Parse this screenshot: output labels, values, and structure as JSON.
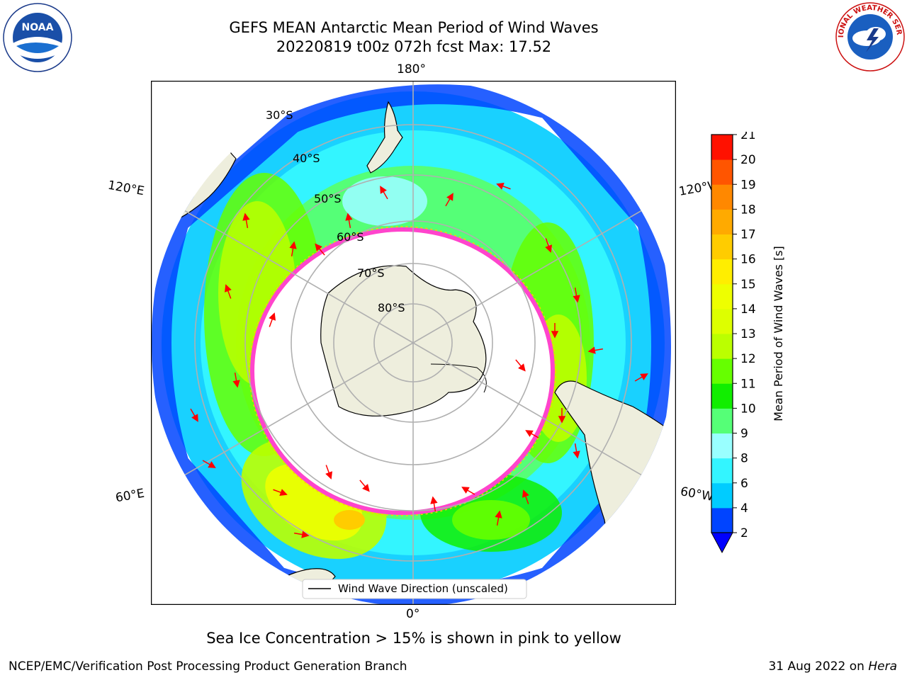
{
  "title": {
    "line1": "GEFS MEAN Antarctic Mean Period of Wind Waves",
    "line2": "20220819 t00z 072h fcst   Max: 17.52"
  },
  "map": {
    "projection": "south polar stereographic",
    "longitude_labels": {
      "top": "180°",
      "bottom": "0°",
      "upper_left": "120°E",
      "upper_right": "120°W",
      "lower_left": "60°E",
      "lower_right": "60°W"
    },
    "latitude_labels": [
      "30°S",
      "40°S",
      "50°S",
      "60°S",
      "70°S",
      "80°S"
    ],
    "legend": "Wind Wave Direction (unscaled)",
    "colors": {
      "land": "#eeeedd",
      "ice_edge": "#ff44cc",
      "arrow": "#ff0000",
      "grid": "#b0b0b0"
    }
  },
  "colorbar": {
    "label": "Mean Period of Wind Waves [s]",
    "ticks": [
      "2",
      "4",
      "6",
      "8",
      "9",
      "10",
      "11",
      "12",
      "13",
      "14",
      "15",
      "16",
      "17",
      "18",
      "19",
      "20",
      "21"
    ],
    "colors": [
      "#0044ff",
      "#00ccff",
      "#33f5ff",
      "#99ffff",
      "#55ff77",
      "#11ee00",
      "#66ff00",
      "#bbff00",
      "#ddff00",
      "#eeff00",
      "#ffee00",
      "#ffcc00",
      "#ffaa00",
      "#ff8800",
      "#ff5500",
      "#ff1100"
    ],
    "extend_below_color": "#0000ff"
  },
  "caption": "Sea Ice Concentration > 15% is shown in pink to yellow",
  "footer": {
    "left": "NCEP/EMC/Verification Post Processing Product Generation Branch",
    "right_date": "31 Aug 2022 on ",
    "right_machine": "Hera"
  },
  "logos": {
    "noaa": {
      "text": "NOAA",
      "ring_text": "NATIONAL OCEANIC AND ATMOSPHERIC ADMINISTRATION · U.S. DEPARTMENT OF COMMERCE"
    },
    "nws": {
      "ring_text": "NATIONAL WEATHER SERVICE"
    }
  }
}
